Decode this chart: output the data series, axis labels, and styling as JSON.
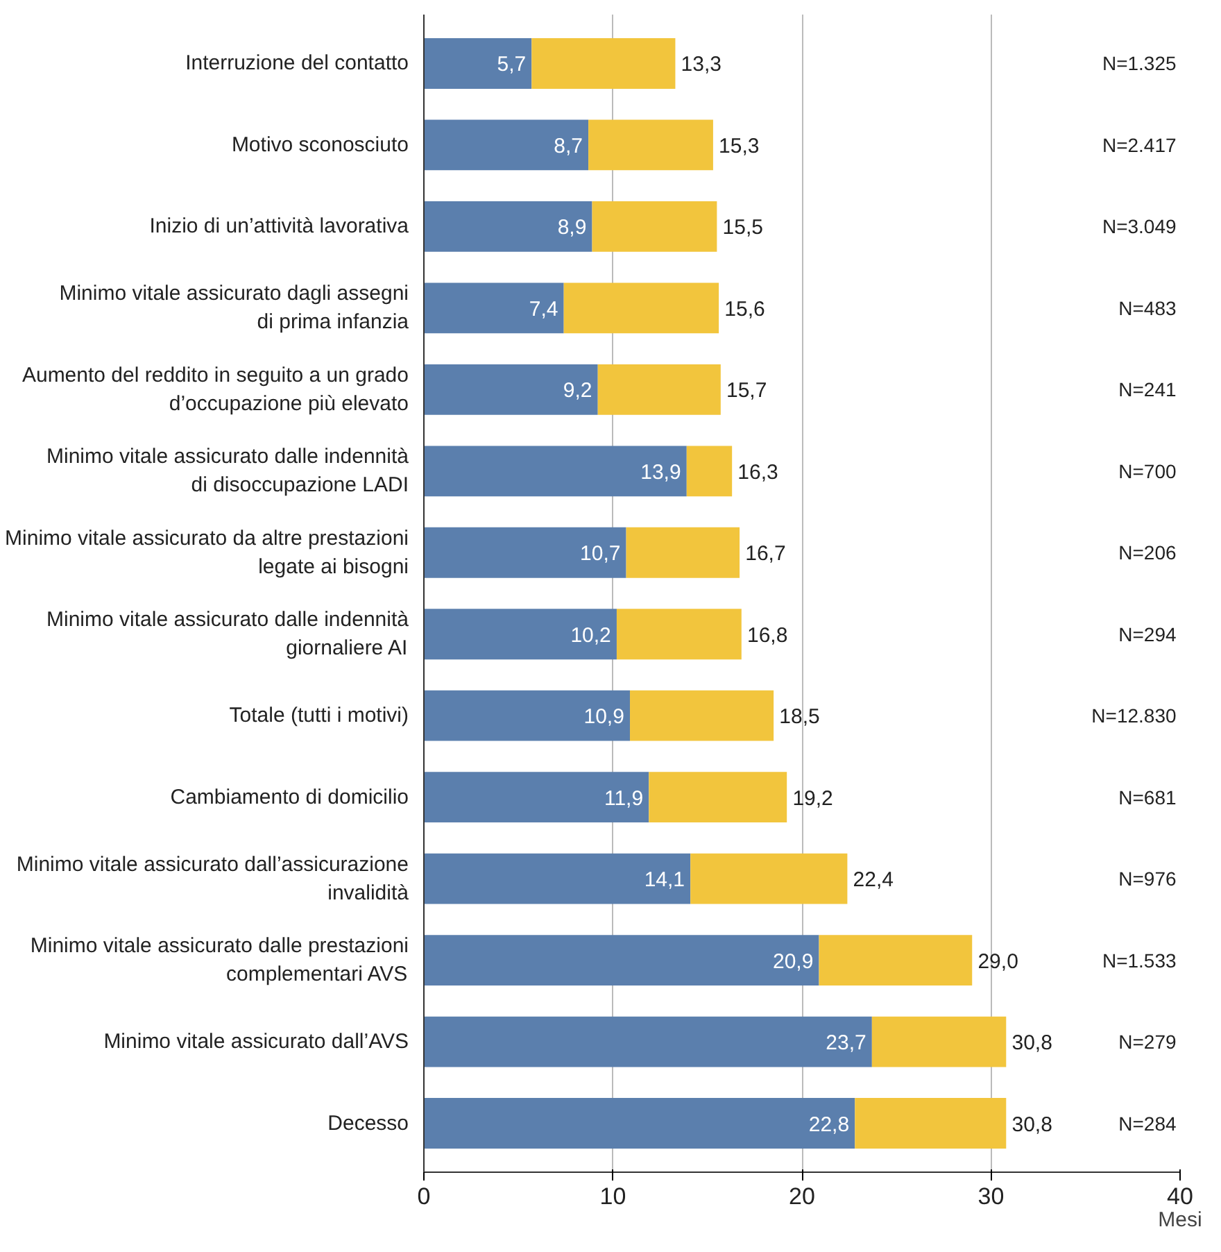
{
  "chart_data": {
    "type": "bar",
    "orientation": "horizontal",
    "stacked": true,
    "xlabel": "Mesi",
    "categories": [
      "Interruzione del contatto",
      "Motivo sconosciuto",
      "Inizio di un’attività lavorativa",
      "Minimo vitale assicurato dagli assegni\ndi prima infanzia",
      "Aumento del reddito in seguito a un grado\nd’occupazione più elevato",
      "Minimo vitale assicurato dalle indennità\ndi disoccupazione LADI",
      "Minimo vitale assicurato da altre prestazioni\nlegate ai bisogni",
      "Minimo vitale assicurato dalle indennità\ngiornaliere AI",
      "Totale (tutti i motivi)",
      "Cambiamento di domicilio",
      "Minimo vitale assicurato dall’assicurazione\ninvalidità",
      "Minimo vitale assicurato dalle prestazioni\ncomplementari AVS",
      "Minimo vitale assicurato dall’AVS",
      "Decesso"
    ],
    "series": [
      {
        "color": "#5b7fad",
        "values": [
          5.7,
          8.7,
          8.9,
          7.4,
          9.2,
          13.9,
          10.7,
          10.2,
          10.9,
          11.9,
          14.1,
          20.9,
          23.7,
          22.8
        ],
        "value_labels": [
          "5,7",
          "8,7",
          "8,9",
          "7,4",
          "9,2",
          "13,9",
          "10,7",
          "10,2",
          "10,9",
          "11,9",
          "14,1",
          "20,9",
          "23,7",
          "22,8"
        ]
      },
      {
        "color": "#f2c53d",
        "values": [
          7.6,
          6.6,
          6.6,
          8.2,
          6.5,
          2.4,
          6.0,
          6.6,
          7.6,
          7.3,
          8.3,
          8.1,
          7.1,
          8.0
        ]
      }
    ],
    "totals": [
      "13,3",
      "15,3",
      "15,5",
      "15,6",
      "15,7",
      "16,3",
      "16,7",
      "16,8",
      "18,5",
      "19,2",
      "22,4",
      "29,0",
      "30,8",
      "30,8"
    ],
    "xlim": [
      0,
      40
    ],
    "xticks": [
      0,
      10,
      20,
      30,
      40
    ],
    "grid": "x",
    "annotations": [
      "N=1.325",
      "N=2.417",
      "N=3.049",
      "N=483",
      "N=241",
      "N=700",
      "N=206",
      "N=294",
      "N=12.830",
      "N=681",
      "N=976",
      "N=1.533",
      "N=279",
      "N=284"
    ]
  }
}
